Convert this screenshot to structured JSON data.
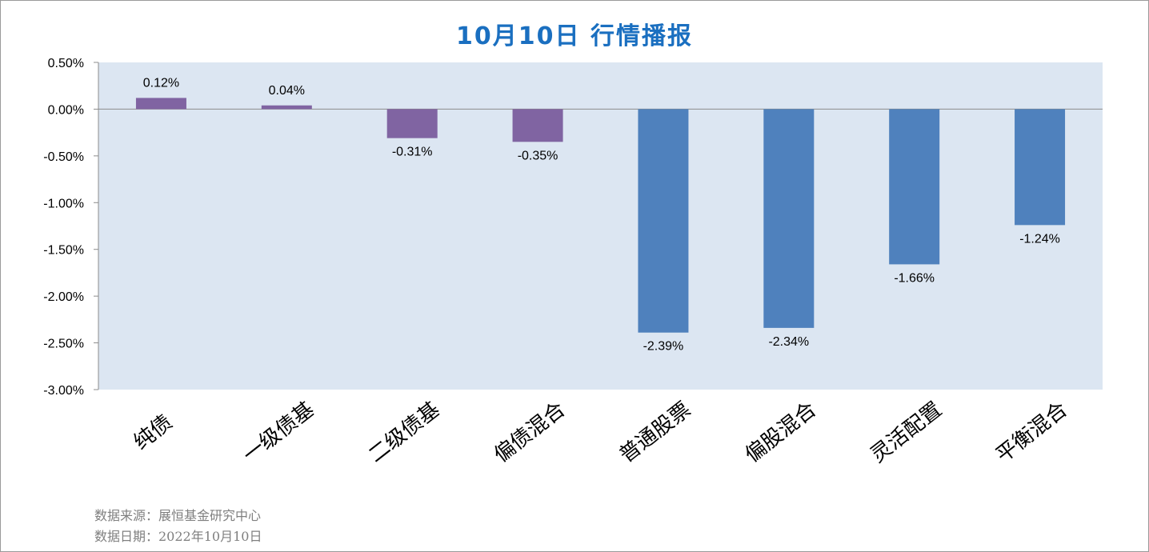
{
  "title": "10月10日  行情播报",
  "footer": {
    "source": "数据来源：展恒基金研究中心",
    "date": "数据日期：2022年10月10日"
  },
  "chart_data": {
    "type": "bar",
    "title": "10月10日  行情播报",
    "categories": [
      "纯债",
      "一级债基",
      "二级债基",
      "偏债混合",
      "普通股票",
      "偏股混合",
      "灵活配置",
      "平衡混合"
    ],
    "values": [
      0.12,
      0.04,
      -0.31,
      -0.35,
      -2.39,
      -2.34,
      -1.66,
      -1.24
    ],
    "value_labels": [
      "0.12%",
      "0.04%",
      "-0.31%",
      "-0.35%",
      "-2.39%",
      "-2.34%",
      "-1.66%",
      "-1.24%"
    ],
    "y_ticks": [
      0.5,
      0.0,
      -0.5,
      -1.0,
      -1.5,
      -2.0,
      -2.5,
      -3.0
    ],
    "y_tick_labels": [
      "0.50%",
      "0.00%",
      "-0.50%",
      "-1.00%",
      "-1.50%",
      "-2.00%",
      "-2.50%",
      "-3.00%"
    ],
    "ylim": [
      -3.0,
      0.5
    ],
    "grid": false,
    "legend": "none",
    "colors": {
      "bond_group": "#8064a2",
      "equity_group": "#4f81bd",
      "plot_bg": "#dce6f2",
      "title": "#1a6fc0"
    },
    "bar_color_keys": [
      "bond_group",
      "bond_group",
      "bond_group",
      "bond_group",
      "equity_group",
      "equity_group",
      "equity_group",
      "equity_group"
    ]
  }
}
